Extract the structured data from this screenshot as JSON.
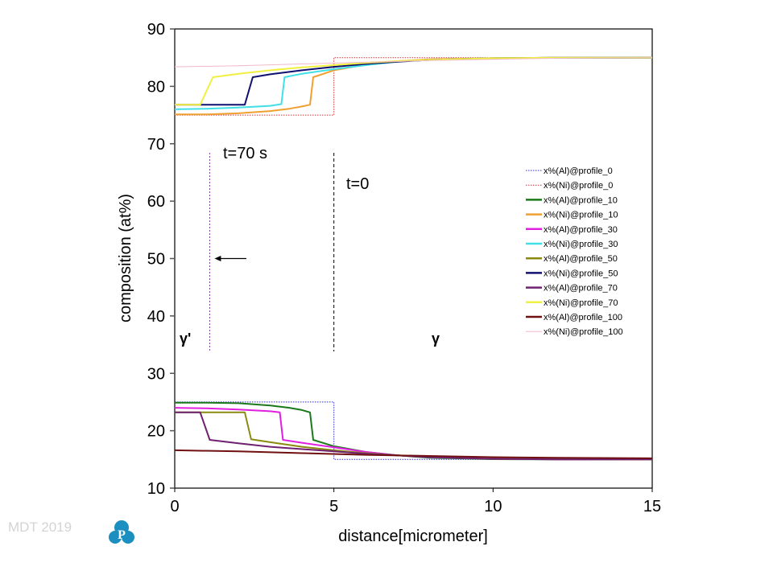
{
  "footer": {
    "text": "MDT 2019",
    "logo_icon": "p-logo-icon",
    "logo_letter": "P",
    "logo_color": "#1a8fc0"
  },
  "chart_data": {
    "type": "line",
    "title": "",
    "xlabel": "distance[micrometer]",
    "ylabel": "composition (at%)",
    "xlim": [
      0,
      15
    ],
    "ylim": [
      10,
      90
    ],
    "xticks": [
      0,
      5,
      10,
      15
    ],
    "yticks": [
      10,
      20,
      30,
      40,
      50,
      60,
      70,
      80,
      90
    ],
    "grid": false,
    "legend_position": "right",
    "annotations": {
      "t70_label": "t=70 s",
      "t0_label": "t=0",
      "gamma_prime_label": "γ'",
      "gamma_label": "γ",
      "t70_line_x": 1.1,
      "t0_line_x": 5.0,
      "arrow_from_x": 2.25,
      "arrow_to_x": 1.25,
      "arrow_y": 50
    },
    "series": [
      {
        "name": "x%(Al)@profile_0",
        "color": "#2b2bd0",
        "style": "dotted",
        "width": 1,
        "x": [
          0,
          5,
          5,
          15
        ],
        "y": [
          25,
          25,
          15,
          15
        ]
      },
      {
        "name": "x%(Ni)@profile_0",
        "color": "#d03030",
        "style": "dotted",
        "width": 1,
        "x": [
          0,
          5,
          5,
          15
        ],
        "y": [
          75,
          75,
          85,
          85
        ]
      },
      {
        "name": "x%(Al)@profile_10",
        "color": "#1a7a1a",
        "style": "solid",
        "width": 2,
        "x": [
          0,
          1,
          2,
          3,
          3.6,
          4.0,
          4.25,
          4.35,
          5,
          6,
          7,
          8,
          10,
          12,
          15
        ],
        "y": [
          24.9,
          24.9,
          24.8,
          24.4,
          24.0,
          23.6,
          23.2,
          18.4,
          17.3,
          16.3,
          15.7,
          15.3,
          15.05,
          15.0,
          15.0
        ]
      },
      {
        "name": "x%(Ni)@profile_10",
        "color": "#f0a030",
        "style": "solid",
        "width": 2,
        "x": [
          0,
          1,
          2,
          3,
          3.6,
          4.0,
          4.25,
          4.35,
          5,
          6,
          7,
          8,
          10,
          12,
          15
        ],
        "y": [
          75.1,
          75.1,
          75.3,
          75.7,
          76.1,
          76.5,
          76.8,
          81.6,
          82.8,
          83.8,
          84.4,
          84.7,
          84.9,
          85.0,
          85.0
        ]
      },
      {
        "name": "x%(Al)@profile_30",
        "color": "#e020e0",
        "style": "solid",
        "width": 2,
        "x": [
          0,
          1,
          2,
          3,
          3.3,
          3.4,
          4,
          5,
          6,
          7,
          8,
          10,
          12,
          15
        ],
        "y": [
          24.0,
          23.9,
          23.7,
          23.4,
          23.2,
          18.4,
          17.9,
          17.1,
          16.3,
          15.7,
          15.4,
          15.1,
          15.0,
          15.0
        ]
      },
      {
        "name": "x%(Ni)@profile_30",
        "color": "#40e0e8",
        "style": "solid",
        "width": 2,
        "x": [
          0,
          1,
          2,
          3,
          3.35,
          3.45,
          4,
          5,
          6,
          7,
          8,
          10,
          12,
          15
        ],
        "y": [
          76.0,
          76.1,
          76.3,
          76.6,
          76.9,
          81.6,
          82.2,
          83.0,
          83.7,
          84.3,
          84.6,
          84.9,
          85.0,
          85.0
        ]
      },
      {
        "name": "x%(Al)@profile_50",
        "color": "#8a8a10",
        "style": "solid",
        "width": 2,
        "x": [
          0,
          1,
          2.2,
          2.4,
          3,
          4,
          5,
          6,
          7,
          8,
          10,
          12,
          15
        ],
        "y": [
          23.2,
          23.2,
          23.2,
          18.5,
          18.0,
          17.2,
          16.6,
          16.1,
          15.7,
          15.4,
          15.1,
          15.0,
          15.0
        ]
      },
      {
        "name": "x%(Ni)@profile_50",
        "color": "#101070",
        "style": "solid",
        "width": 2,
        "x": [
          0,
          1,
          2.2,
          2.45,
          3,
          4,
          5,
          6,
          7,
          8,
          10,
          12,
          15
        ],
        "y": [
          76.8,
          76.8,
          76.8,
          81.6,
          82.1,
          82.8,
          83.4,
          83.9,
          84.3,
          84.6,
          84.9,
          85.0,
          85.0
        ]
      },
      {
        "name": "x%(Al)@profile_70",
        "color": "#702070",
        "style": "solid",
        "width": 2,
        "x": [
          0,
          0.4,
          0.8,
          1.1,
          2,
          3,
          4,
          5,
          6,
          7,
          8,
          10,
          12,
          15
        ],
        "y": [
          23.2,
          23.2,
          23.2,
          18.4,
          17.8,
          17.2,
          16.8,
          16.4,
          16.0,
          15.7,
          15.4,
          15.1,
          15.0,
          15.0
        ]
      },
      {
        "name": "x%(Ni)@profile_70",
        "color": "#f0f040",
        "style": "solid",
        "width": 2,
        "x": [
          0,
          0.4,
          0.8,
          1.2,
          2,
          3,
          4,
          5,
          6,
          7,
          8,
          10,
          12,
          15
        ],
        "y": [
          76.8,
          76.8,
          76.8,
          81.6,
          82.2,
          82.8,
          83.3,
          83.7,
          84.1,
          84.4,
          84.6,
          84.9,
          85.0,
          85.0
        ]
      },
      {
        "name": "x%(Al)@profile_100",
        "color": "#701010",
        "style": "solid",
        "width": 2,
        "x": [
          0,
          2,
          4,
          6,
          8,
          10,
          12,
          15
        ],
        "y": [
          16.6,
          16.4,
          16.1,
          15.8,
          15.6,
          15.4,
          15.3,
          15.2
        ]
      },
      {
        "name": "x%(Ni)@profile_100",
        "color": "#f0b8c8",
        "style": "solid",
        "width": 1,
        "x": [
          0,
          2,
          4,
          6,
          8,
          10,
          12,
          15
        ],
        "y": [
          83.4,
          83.6,
          83.9,
          84.2,
          84.5,
          84.7,
          84.9,
          85.0
        ]
      }
    ]
  }
}
